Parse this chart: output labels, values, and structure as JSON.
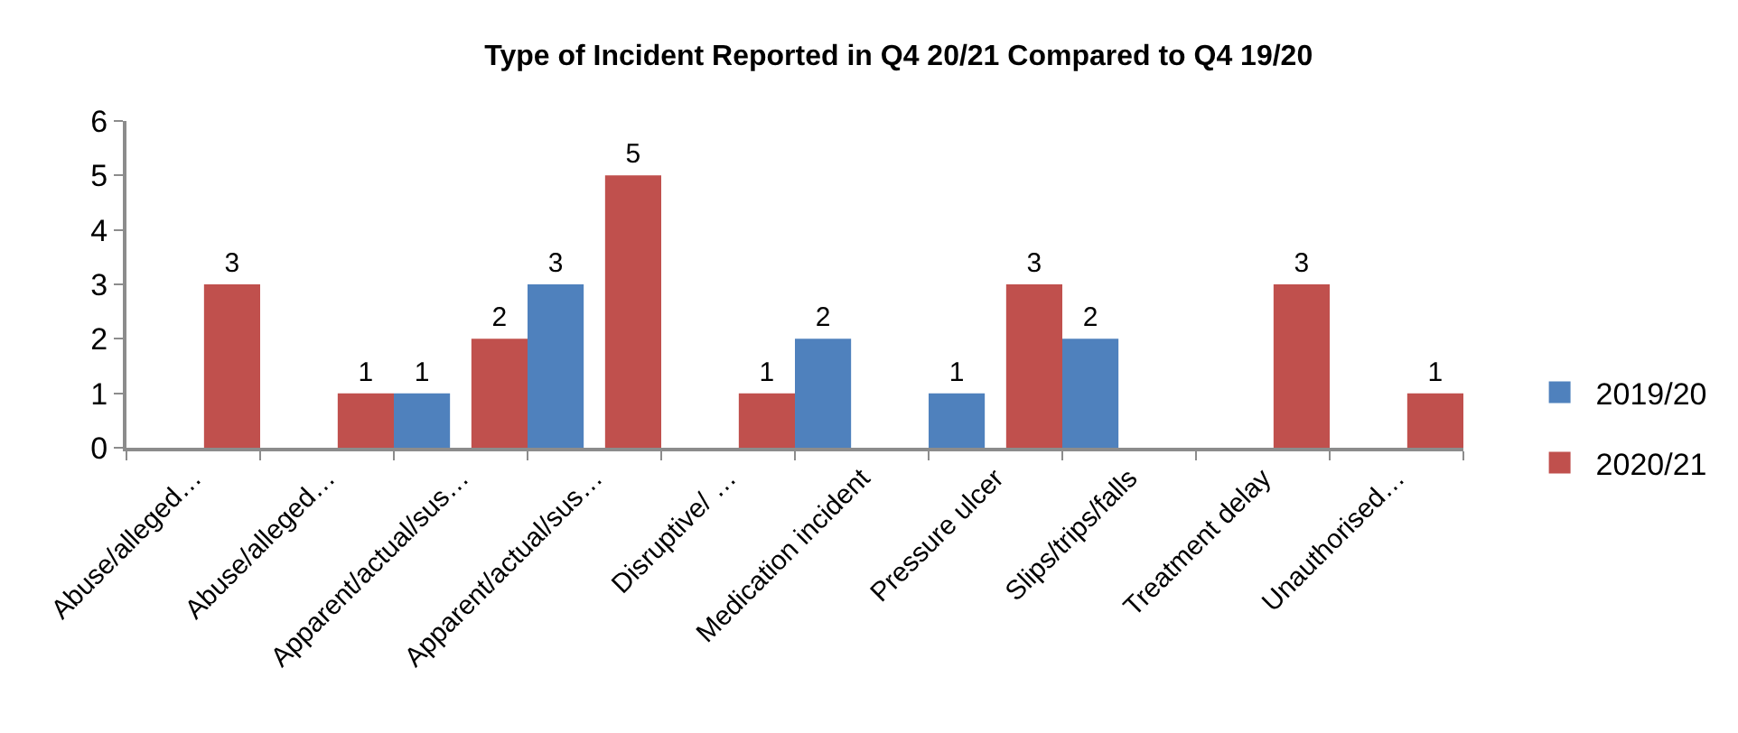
{
  "chart_data": {
    "type": "bar",
    "title": "Type of Incident Reported in Q4 20/21 Compared to Q4 19/20",
    "categories": [
      "Abuse/alleged…",
      "Abuse/alleged…",
      "Apparent/actual/sus…",
      "Apparent/actual/sus…",
      "Disruptive/ …",
      "Medication incident",
      "Pressure ulcer",
      "Slips/trips/falls",
      "Treatment delay",
      "Unauthorised…"
    ],
    "series": [
      {
        "name": "2019/20",
        "color": "#4f81bd",
        "values": [
          null,
          null,
          1,
          3,
          null,
          2,
          1,
          2,
          null,
          null
        ]
      },
      {
        "name": "2020/21",
        "color": "#c0504d",
        "values": [
          3,
          1,
          2,
          5,
          1,
          null,
          3,
          null,
          3,
          1
        ]
      }
    ],
    "ylim": [
      0,
      6
    ],
    "yticks": [
      0,
      1,
      2,
      3,
      4,
      5,
      6
    ],
    "legend": "right",
    "data_labels": true
  }
}
